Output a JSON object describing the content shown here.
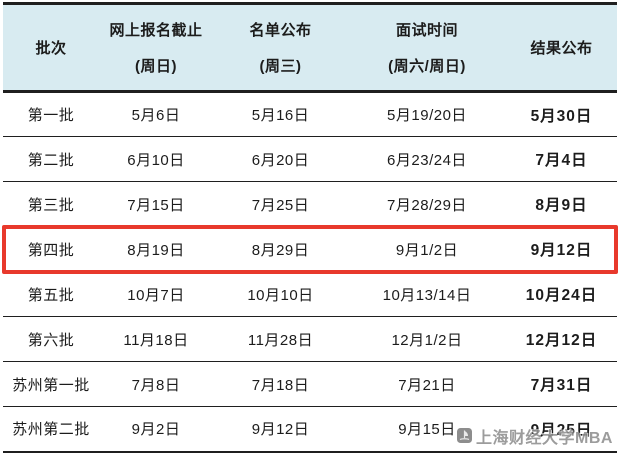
{
  "header": {
    "batch": "批次",
    "registration_line1": "网上报名截止",
    "registration_line2": "(周日)",
    "list_line1": "名单公布",
    "list_line2": "(周三)",
    "interview_line1": "面试时间",
    "interview_line2": "(周六/周日)",
    "result": "结果公布"
  },
  "rows": [
    {
      "batch": "第一批",
      "registration": "5月6日",
      "list": "5月16日",
      "interview": "5月19/20日",
      "result": "5月30日",
      "highlight": false
    },
    {
      "batch": "第二批",
      "registration": "6月10日",
      "list": "6月20日",
      "interview": "6月23/24日",
      "result": "7月4日",
      "highlight": false
    },
    {
      "batch": "第三批",
      "registration": "7月15日",
      "list": "7月25日",
      "interview": "7月28/29日",
      "result": "8月9日",
      "highlight": false
    },
    {
      "batch": "第四批",
      "registration": "8月19日",
      "list": "8月29日",
      "interview": "9月1/2日",
      "result": "9月12日",
      "highlight": true
    },
    {
      "batch": "第五批",
      "registration": "10月7日",
      "list": "10月10日",
      "interview": "10月13/14日",
      "result": "10月24日",
      "highlight": false
    },
    {
      "batch": "第六批",
      "registration": "11月18日",
      "list": "11月28日",
      "interview": "12月1/2日",
      "result": "12月12日",
      "highlight": false
    },
    {
      "batch": "苏州第一批",
      "registration": "7月8日",
      "list": "7月18日",
      "interview": "7月21日",
      "result": "7月31日",
      "highlight": false
    },
    {
      "batch": "苏州第二批",
      "registration": "9月2日",
      "list": "9月12日",
      "interview": "9月15日",
      "result": "9月25日",
      "highlight": false
    }
  ],
  "watermark": {
    "text": "上海财经大学MBA"
  },
  "colors": {
    "header_bg": "#d8ebf1",
    "highlight": "#e8392c",
    "line": "#1f1f1f",
    "text": "#1c1c1c",
    "watermark": "#8f8f8f"
  }
}
